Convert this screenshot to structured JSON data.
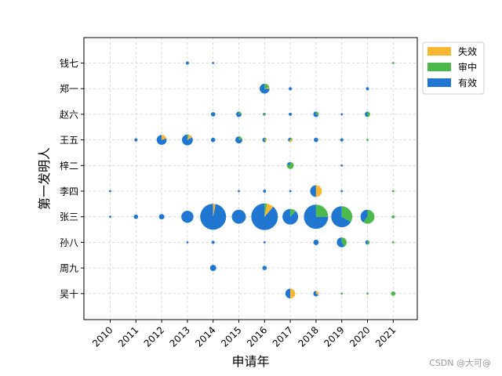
{
  "chart_data": {
    "type": "scatter",
    "subtype": "pie-bubble",
    "xlabel": "申请年",
    "ylabel": "第一发明人",
    "x_categories": [
      "2010",
      "2011",
      "2012",
      "2013",
      "2014",
      "2015",
      "2016",
      "2017",
      "2018",
      "2019",
      "2020",
      "2021"
    ],
    "y_categories": [
      "钱七",
      "郑一",
      "赵六",
      "王五",
      "梓二",
      "李四",
      "张三",
      "孙八",
      "周九",
      "吴十"
    ],
    "grid": true,
    "legend_position": "top-right (outside plot)",
    "series": [
      {
        "name": "失效",
        "color": "#F7B731"
      },
      {
        "name": "审中",
        "color": "#4CB94C"
      },
      {
        "name": "有效",
        "color": "#1F77D2"
      }
    ],
    "points": [
      {
        "x": "2013",
        "y": "钱七",
        "total": 1,
        "lapsed": 0,
        "pending": 0,
        "valid": 1
      },
      {
        "x": "2014",
        "y": "钱七",
        "total": 0.5,
        "lapsed": 0,
        "pending": 0,
        "valid": 0.5
      },
      {
        "x": "2021",
        "y": "钱七",
        "total": 0.5,
        "lapsed": 0,
        "pending": 0.5,
        "valid": 0
      },
      {
        "x": "2016",
        "y": "郑一",
        "total": 10,
        "lapsed": 0.5,
        "pending": 2,
        "valid": 7.5
      },
      {
        "x": "2017",
        "y": "郑一",
        "total": 1,
        "lapsed": 0,
        "pending": 0,
        "valid": 1
      },
      {
        "x": "2020",
        "y": "郑一",
        "total": 1,
        "lapsed": 0,
        "pending": 0,
        "valid": 1
      },
      {
        "x": "2014",
        "y": "赵六",
        "total": 2,
        "lapsed": 0,
        "pending": 0,
        "valid": 2
      },
      {
        "x": "2015",
        "y": "赵六",
        "total": 3,
        "lapsed": 0,
        "pending": 0.6,
        "valid": 2.4
      },
      {
        "x": "2016",
        "y": "赵六",
        "total": 1,
        "lapsed": 0.2,
        "pending": 0.3,
        "valid": 0.5
      },
      {
        "x": "2017",
        "y": "赵六",
        "total": 1,
        "lapsed": 0,
        "pending": 0,
        "valid": 1
      },
      {
        "x": "2018",
        "y": "赵六",
        "total": 3,
        "lapsed": 0,
        "pending": 1,
        "valid": 2
      },
      {
        "x": "2019",
        "y": "赵六",
        "total": 0.5,
        "lapsed": 0,
        "pending": 0,
        "valid": 0.5
      },
      {
        "x": "2020",
        "y": "赵六",
        "total": 3,
        "lapsed": 0,
        "pending": 1.5,
        "valid": 1.5
      },
      {
        "x": "2011",
        "y": "王五",
        "total": 1,
        "lapsed": 0,
        "pending": 0,
        "valid": 1
      },
      {
        "x": "2012",
        "y": "王五",
        "total": 10,
        "lapsed": 2,
        "pending": 0,
        "valid": 8
      },
      {
        "x": "2013",
        "y": "王五",
        "total": 12,
        "lapsed": 1.5,
        "pending": 0.5,
        "valid": 10
      },
      {
        "x": "2014",
        "y": "王五",
        "total": 2,
        "lapsed": 0,
        "pending": 0,
        "valid": 2
      },
      {
        "x": "2015",
        "y": "王五",
        "total": 5,
        "lapsed": 0,
        "pending": 1,
        "valid": 4
      },
      {
        "x": "2016",
        "y": "王五",
        "total": 2,
        "lapsed": 0.4,
        "pending": 0.4,
        "valid": 1.2
      },
      {
        "x": "2017",
        "y": "王五",
        "total": 2,
        "lapsed": 0.8,
        "pending": 0.4,
        "valid": 0.8
      },
      {
        "x": "2018",
        "y": "王五",
        "total": 2,
        "lapsed": 0,
        "pending": 0,
        "valid": 2
      },
      {
        "x": "2019",
        "y": "王五",
        "total": 1,
        "lapsed": 0,
        "pending": 0,
        "valid": 1
      },
      {
        "x": "2020",
        "y": "王五",
        "total": 0.5,
        "lapsed": 0,
        "pending": 0.5,
        "valid": 0
      },
      {
        "x": "2017",
        "y": "梓二",
        "total": 5,
        "lapsed": 0,
        "pending": 4,
        "valid": 1
      },
      {
        "x": "2019",
        "y": "梓二",
        "total": 0.5,
        "lapsed": 0,
        "pending": 0,
        "valid": 0.5
      },
      {
        "x": "2010",
        "y": "李四",
        "total": 0.5,
        "lapsed": 0,
        "pending": 0,
        "valid": 0.5
      },
      {
        "x": "2015",
        "y": "李四",
        "total": 0.5,
        "lapsed": 0,
        "pending": 0,
        "valid": 0.5
      },
      {
        "x": "2016",
        "y": "李四",
        "total": 1,
        "lapsed": 0,
        "pending": 0,
        "valid": 1
      },
      {
        "x": "2017",
        "y": "李四",
        "total": 0.5,
        "lapsed": 0,
        "pending": 0,
        "valid": 0.5
      },
      {
        "x": "2018",
        "y": "李四",
        "total": 14,
        "lapsed": 7,
        "pending": 0,
        "valid": 7
      },
      {
        "x": "2019",
        "y": "李四",
        "total": 0.5,
        "lapsed": 0,
        "pending": 0,
        "valid": 0.5
      },
      {
        "x": "2021",
        "y": "李四",
        "total": 0.5,
        "lapsed": 0,
        "pending": 0.5,
        "valid": 0
      },
      {
        "x": "2010",
        "y": "张三",
        "total": 0.5,
        "lapsed": 0,
        "pending": 0,
        "valid": 0.5
      },
      {
        "x": "2011",
        "y": "张三",
        "total": 2,
        "lapsed": 0,
        "pending": 0,
        "valid": 2
      },
      {
        "x": "2012",
        "y": "张三",
        "total": 3,
        "lapsed": 0,
        "pending": 0,
        "valid": 3
      },
      {
        "x": "2013",
        "y": "张三",
        "total": 15,
        "lapsed": 0,
        "pending": 0,
        "valid": 15
      },
      {
        "x": "2014",
        "y": "张三",
        "total": 68,
        "lapsed": 2,
        "pending": 0,
        "valid": 66
      },
      {
        "x": "2015",
        "y": "张三",
        "total": 20,
        "lapsed": 0,
        "pending": 0,
        "valid": 20
      },
      {
        "x": "2016",
        "y": "张三",
        "total": 72,
        "lapsed": 6,
        "pending": 2,
        "valid": 64
      },
      {
        "x": "2017",
        "y": "张三",
        "total": 25,
        "lapsed": 0,
        "pending": 3,
        "valid": 22
      },
      {
        "x": "2018",
        "y": "张三",
        "total": 60,
        "lapsed": 0,
        "pending": 15,
        "valid": 45
      },
      {
        "x": "2019",
        "y": "张三",
        "total": 45,
        "lapsed": 0,
        "pending": 15,
        "valid": 30
      },
      {
        "x": "2020",
        "y": "张三",
        "total": 20,
        "lapsed": 0,
        "pending": 12,
        "valid": 8
      },
      {
        "x": "2021",
        "y": "张三",
        "total": 1,
        "lapsed": 0,
        "pending": 1,
        "valid": 0
      },
      {
        "x": "2013",
        "y": "孙八",
        "total": 0.5,
        "lapsed": 0,
        "pending": 0,
        "valid": 0.5
      },
      {
        "x": "2014",
        "y": "孙八",
        "total": 1,
        "lapsed": 0,
        "pending": 0,
        "valid": 1
      },
      {
        "x": "2016",
        "y": "孙八",
        "total": 0.5,
        "lapsed": 0,
        "pending": 0,
        "valid": 0.5
      },
      {
        "x": "2018",
        "y": "孙八",
        "total": 3,
        "lapsed": 0,
        "pending": 0,
        "valid": 3
      },
      {
        "x": "2019",
        "y": "孙八",
        "total": 10,
        "lapsed": 0,
        "pending": 4,
        "valid": 6
      },
      {
        "x": "2020",
        "y": "孙八",
        "total": 2,
        "lapsed": 0,
        "pending": 1,
        "valid": 1
      },
      {
        "x": "2021",
        "y": "孙八",
        "total": 0.5,
        "lapsed": 0,
        "pending": 0.5,
        "valid": 0
      },
      {
        "x": "2014",
        "y": "周九",
        "total": 4,
        "lapsed": 0,
        "pending": 0,
        "valid": 4
      },
      {
        "x": "2016",
        "y": "周九",
        "total": 2,
        "lapsed": 0,
        "pending": 0,
        "valid": 2
      },
      {
        "x": "2017",
        "y": "吴十",
        "total": 10,
        "lapsed": 5,
        "pending": 0,
        "valid": 5
      },
      {
        "x": "2018",
        "y": "吴十",
        "total": 3,
        "lapsed": 1,
        "pending": 0,
        "valid": 2
      },
      {
        "x": "2019",
        "y": "吴十",
        "total": 0.5,
        "lapsed": 0,
        "pending": 0.5,
        "valid": 0
      },
      {
        "x": "2020",
        "y": "吴十",
        "total": 0.5,
        "lapsed": 0,
        "pending": 0.5,
        "valid": 0
      },
      {
        "x": "2021",
        "y": "吴十",
        "total": 2,
        "lapsed": 0,
        "pending": 2,
        "valid": 0
      }
    ]
  },
  "watermark": "CSDN @大可@"
}
